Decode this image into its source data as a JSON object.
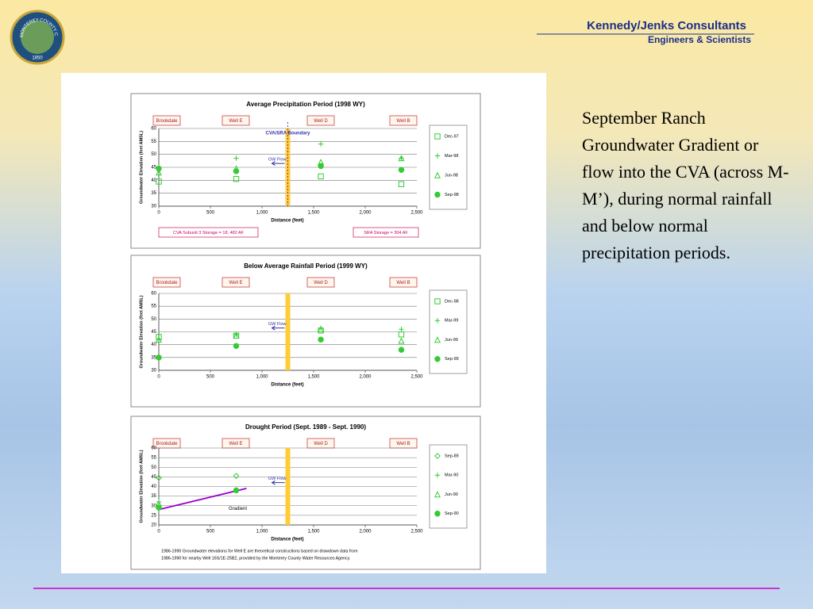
{
  "header": {
    "company": "Kennedy/Jenks Consultants",
    "tagline": "Engineers & Scientists"
  },
  "logo": {
    "text": "MONTEREY COUNTY CALIFORNIA",
    "year": "1850"
  },
  "body_text": "September Ranch Groundwater Gradient or flow into the CVA (across M-M’), during normal rainfall and below normal precipitation periods.",
  "chart_data": [
    {
      "type": "scatter",
      "title": "Average Precipitation Period (1998 WY)",
      "x_label": "Distance (feet)",
      "y_label": "Groundwater Elevation (feet AMSL)",
      "well_labels": [
        "Brookdale",
        "Well E",
        "Well D",
        "Well B"
      ],
      "boundary_x": 1250,
      "boundary_label": "CVA/SRA Boundary",
      "flow_label": "GW Flow",
      "notes": [
        "CVA Subunit 3 Storage = 18, 482 AF",
        "SRA Storage = 304 AF"
      ],
      "xlim": [
        0,
        2500
      ],
      "xticks": [
        0,
        500,
        {
          "value": 1000,
          "label": "1,000"
        },
        {
          "value": 1500,
          "label": "1,500"
        },
        {
          "value": 2000,
          "label": "2,000"
        },
        {
          "value": 2500,
          "label": "2,500"
        }
      ],
      "ylim": [
        30,
        60
      ],
      "yticks": [
        30,
        35,
        40,
        45,
        50,
        55,
        60
      ],
      "grid": true,
      "series": [
        {
          "name": "Dec-97",
          "color": "#33cc33",
          "marker": "square",
          "x": [
            0,
            750,
            1570,
            2350
          ],
          "values": [
            39.5,
            40.5,
            41.5,
            38.5
          ]
        },
        {
          "name": "Mar-98",
          "color": "#33cc33",
          "marker": "plus",
          "x": [
            0,
            750,
            1570,
            2350
          ],
          "values": [
            45,
            48.5,
            54,
            48.5
          ]
        },
        {
          "name": "Jun-98",
          "color": "#33cc33",
          "marker": "triangle",
          "x": [
            0,
            750,
            1570,
            2350
          ],
          "values": [
            43,
            44.5,
            47,
            48.5
          ]
        },
        {
          "name": "Sep-98",
          "color": "#33cc33",
          "marker": "circle",
          "x": [
            0,
            750,
            1570,
            2350
          ],
          "values": [
            44.5,
            43.5,
            45.5,
            44
          ]
        }
      ]
    },
    {
      "type": "scatter",
      "title": "Below Average Rainfall Period (1999 WY)",
      "x_label": "Distance (feet)",
      "y_label": "Groundwater Elevation (feet AMSL)",
      "well_labels": [
        "Brookdale",
        "Well E",
        "Well D",
        "Well B"
      ],
      "boundary_x": 1250,
      "flow_label": "GW Flow",
      "xlim": [
        0,
        2500
      ],
      "xticks": [
        0,
        500,
        {
          "value": 1000,
          "label": "1,000"
        },
        {
          "value": 1500,
          "label": "1,500"
        },
        {
          "value": 2000,
          "label": "2,000"
        },
        {
          "value": 2500,
          "label": "2,500"
        }
      ],
      "ylim": [
        30,
        60
      ],
      "yticks": [
        30,
        35,
        40,
        45,
        50,
        55,
        60
      ],
      "grid": true,
      "series": [
        {
          "name": "Dec-98",
          "color": "#33cc33",
          "marker": "square",
          "x": [
            0,
            750,
            1570,
            2350
          ],
          "values": [
            43,
            43.5,
            45.5,
            44
          ]
        },
        {
          "name": "Mar-99",
          "color": "#33cc33",
          "marker": "plus",
          "x": [
            0,
            750,
            1570,
            2350
          ],
          "values": [
            42,
            44,
            46.5,
            46
          ]
        },
        {
          "name": "Jun-99",
          "color": "#33cc33",
          "marker": "triangle",
          "x": [
            0,
            750,
            1570,
            2350
          ],
          "values": [
            42,
            43.5,
            46,
            41.5
          ]
        },
        {
          "name": "Sep-99",
          "color": "#33cc33",
          "marker": "circle",
          "x": [
            0,
            750,
            1570,
            2350
          ],
          "values": [
            35,
            39.5,
            42,
            38
          ]
        }
      ]
    },
    {
      "type": "scatter",
      "title": "Drought Period (Sept. 1989 - Sept. 1990)",
      "x_label": "Distance (feet)",
      "y_label": "Groundwater Elevation (feet AMSL)",
      "well_labels": [
        "Brookdale",
        "Well E",
        "Well D",
        "Well B"
      ],
      "boundary_x": 1250,
      "flow_label": "GW Flow",
      "footnote": [
        "1986-1990 Groundwater elevations for Well E are theoretical constructions based on drawdown data from",
        "1986-1990 for nearby Well 16S/1E-25B2, provided by the Monterey County Water Resources Agency."
      ],
      "xlim": [
        0,
        2500
      ],
      "xticks": [
        0,
        500,
        {
          "value": 1000,
          "label": "1,000"
        },
        {
          "value": 1500,
          "label": "1,500"
        },
        {
          "value": 2000,
          "label": "2,000"
        },
        {
          "value": 2500,
          "label": "2,500"
        }
      ],
      "ylim": [
        20,
        60
      ],
      "yticks": [
        20,
        25,
        30,
        35,
        40,
        45,
        50,
        55,
        60
      ],
      "grid": true,
      "trend": {
        "name": "Gradient",
        "color": "#9900cc",
        "x": [
          0,
          850
        ],
        "values": [
          28,
          39
        ]
      },
      "series": [
        {
          "name": "Sep-89",
          "color": "#33cc33",
          "marker": "diamond",
          "x": [
            0,
            750
          ],
          "values": [
            44.5,
            45.5
          ]
        },
        {
          "name": "Mar-90",
          "color": "#33cc33",
          "marker": "plus",
          "x": [
            0
          ],
          "values": [
            32
          ]
        },
        {
          "name": "Jun-90",
          "color": "#33cc33",
          "marker": "triangle",
          "x": [
            0
          ],
          "values": [
            31
          ]
        },
        {
          "name": "Sep-90",
          "color": "#33cc33",
          "marker": "circle",
          "x": [
            0,
            750
          ],
          "values": [
            29,
            38
          ]
        }
      ]
    }
  ]
}
